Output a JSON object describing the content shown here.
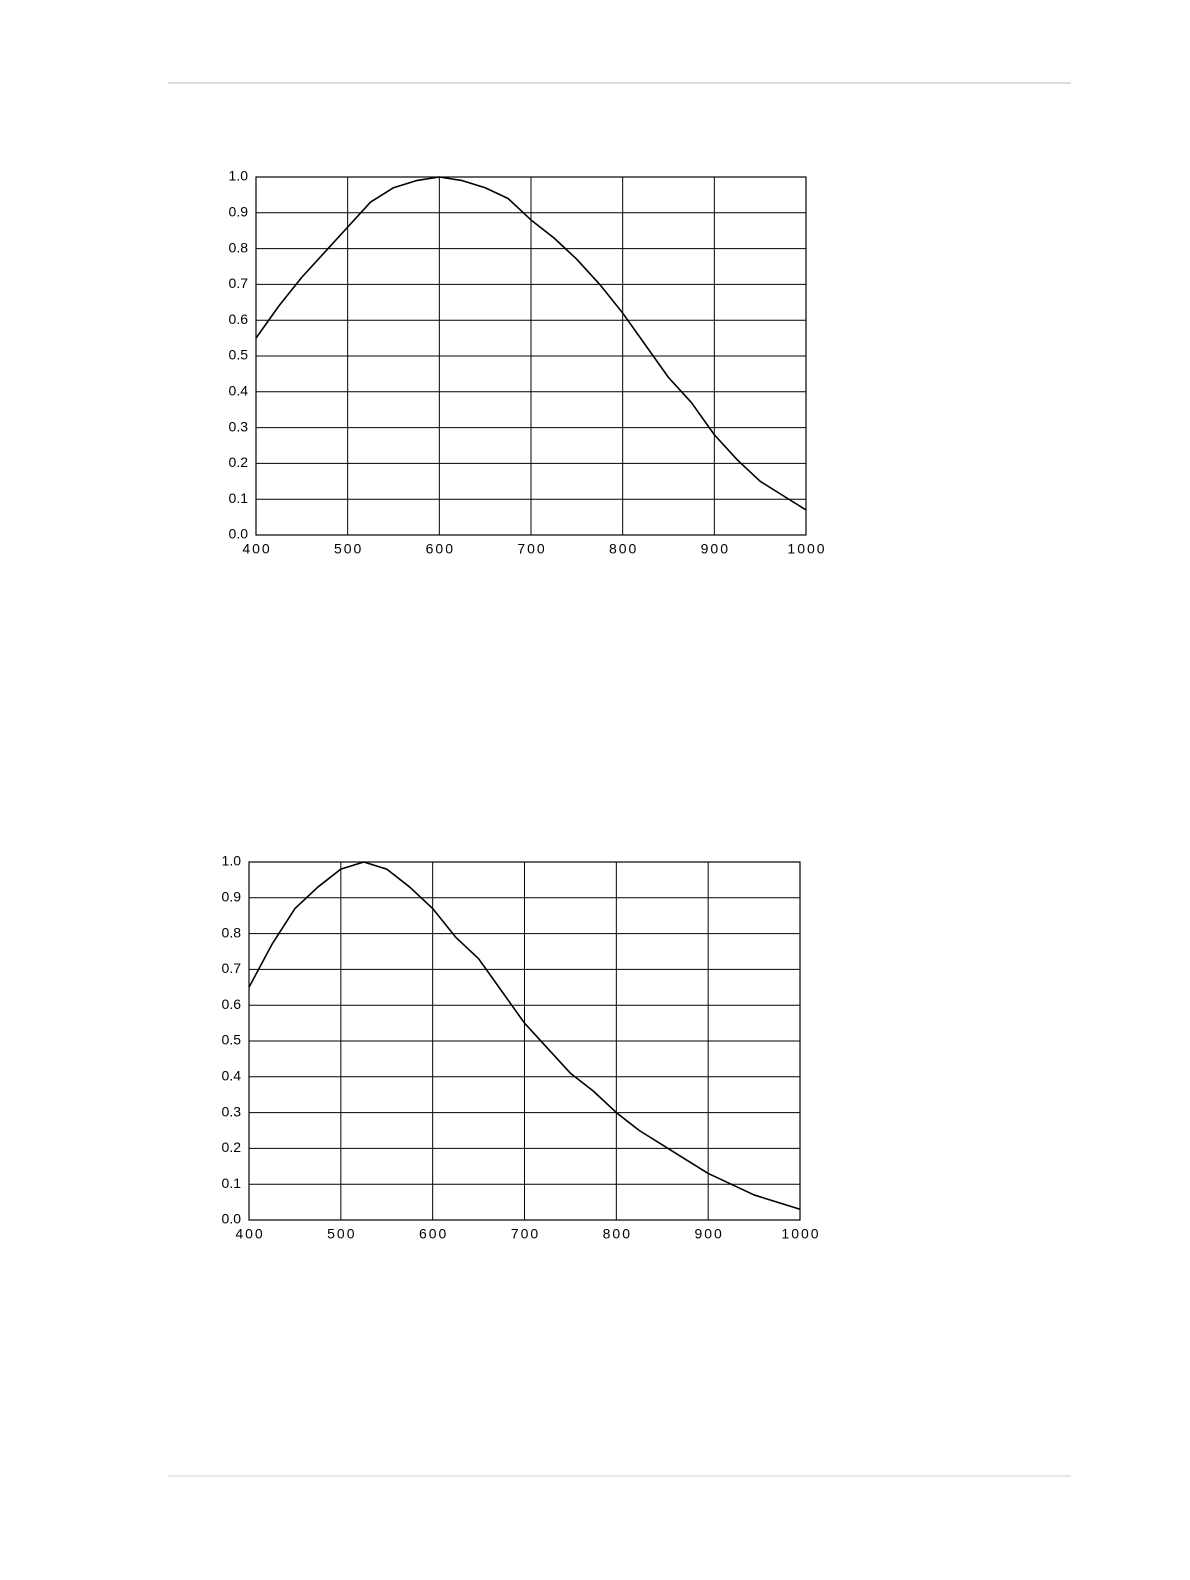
{
  "chart_data": [
    {
      "type": "line",
      "color": "#000000",
      "grid": true,
      "x": [
        400,
        425,
        450,
        475,
        500,
        525,
        550,
        575,
        600,
        625,
        650,
        675,
        700,
        725,
        750,
        775,
        800,
        825,
        850,
        875,
        900,
        925,
        950,
        975,
        1000
      ],
      "values": [
        0.55,
        0.64,
        0.72,
        0.79,
        0.86,
        0.93,
        0.97,
        0.99,
        1.0,
        0.99,
        0.97,
        0.94,
        0.88,
        0.83,
        0.77,
        0.7,
        0.62,
        0.53,
        0.44,
        0.37,
        0.28,
        0.21,
        0.15,
        0.11,
        0.07
      ],
      "xlim": [
        400,
        1000
      ],
      "xticks": [
        400,
        500,
        600,
        700,
        800,
        900,
        1000
      ],
      "ylim": [
        0,
        1
      ],
      "yticks": [
        {
          "value": 0,
          "label": "0.0"
        },
        0.1,
        0.2,
        0.3,
        0.4,
        0.5,
        0.6,
        0.7,
        0.8,
        0.9,
        {
          "value": 1,
          "label": "1.0"
        }
      ]
    },
    {
      "type": "line",
      "color": "#000000",
      "grid": true,
      "x": [
        400,
        425,
        450,
        475,
        500,
        525,
        550,
        575,
        600,
        625,
        650,
        675,
        700,
        725,
        750,
        775,
        800,
        825,
        850,
        875,
        900,
        925,
        950,
        975,
        1000
      ],
      "values": [
        0.65,
        0.77,
        0.87,
        0.93,
        0.98,
        1.0,
        0.98,
        0.93,
        0.87,
        0.79,
        0.73,
        0.64,
        0.55,
        0.48,
        0.41,
        0.36,
        0.3,
        0.25,
        0.21,
        0.17,
        0.13,
        0.1,
        0.07,
        0.05,
        0.03
      ],
      "xlim": [
        400,
        1000
      ],
      "xticks": [
        400,
        500,
        600,
        700,
        800,
        900,
        1000
      ],
      "ylim": [
        0,
        1
      ],
      "yticks": [
        {
          "value": 0,
          "label": "0.0"
        },
        0.1,
        0.2,
        0.3,
        0.4,
        0.5,
        0.6,
        0.7,
        0.8,
        0.9,
        {
          "value": 1,
          "label": "1.0"
        }
      ]
    }
  ]
}
